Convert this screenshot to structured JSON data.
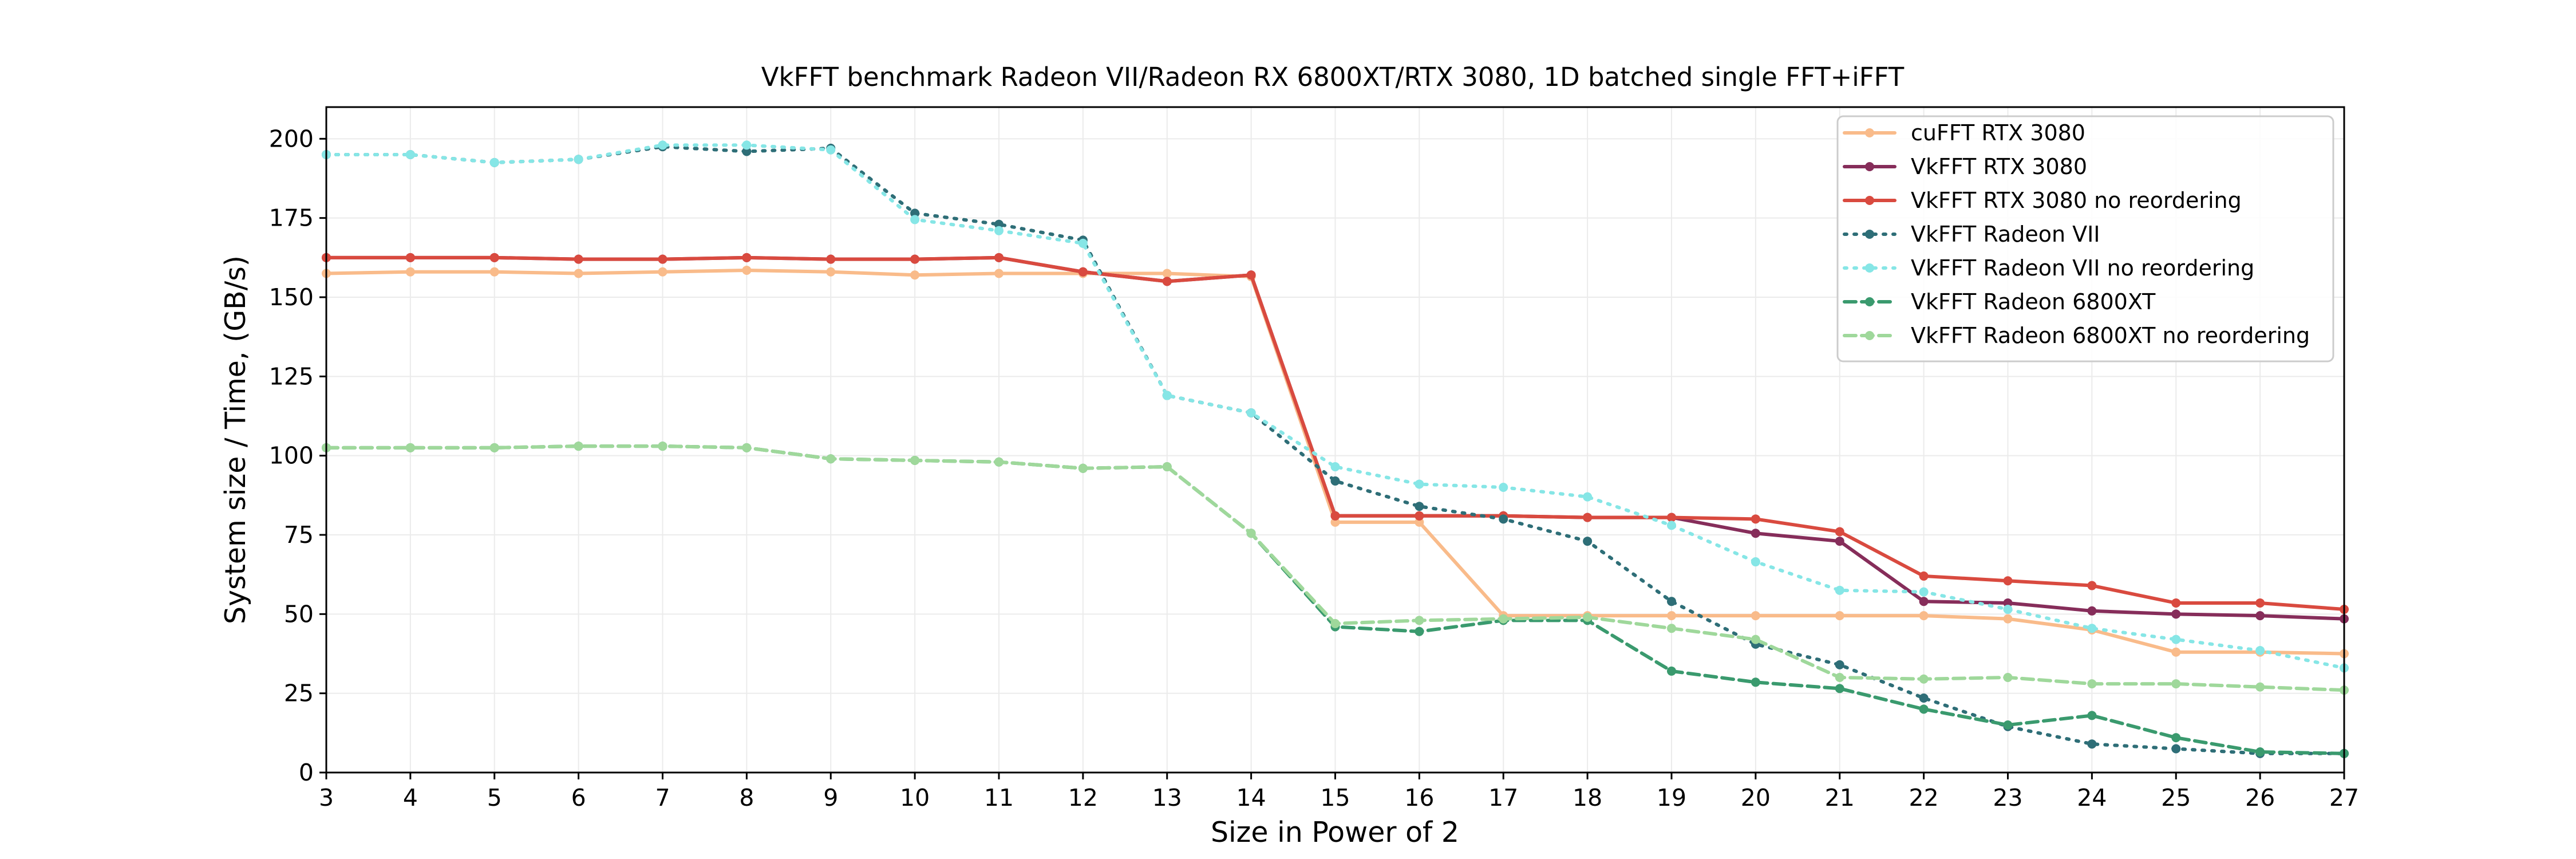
{
  "chart_data": {
    "type": "line",
    "title": "VkFFT benchmark Radeon VII/Radeon RX 6800XT/RTX 3080, 1D batched single FFT+iFFT",
    "xlabel": "Size in Power of 2",
    "ylabel": "System size / Time, (GB/s)",
    "xlim": [
      3,
      27
    ],
    "ylim": [
      0,
      210
    ],
    "xticks": [
      3,
      4,
      5,
      6,
      7,
      8,
      9,
      10,
      11,
      12,
      13,
      14,
      15,
      16,
      17,
      18,
      19,
      20,
      21,
      22,
      23,
      24,
      25,
      26,
      27
    ],
    "yticks": [
      0,
      25,
      50,
      75,
      100,
      125,
      150,
      175,
      200
    ],
    "grid": true,
    "legend_position": "top-right",
    "x": [
      3,
      4,
      5,
      6,
      7,
      8,
      9,
      10,
      11,
      12,
      13,
      14,
      15,
      16,
      17,
      18,
      19,
      20,
      21,
      22,
      23,
      24,
      25,
      26,
      27
    ],
    "series": [
      {
        "name": "cuFFT RTX 3080",
        "color": "#f9bb8a",
        "dash": "solid",
        "values": [
          157.5,
          158,
          158,
          157.5,
          158,
          158.5,
          158,
          157,
          157.5,
          157.5,
          157.5,
          156.5,
          79,
          79,
          49.5,
          49.5,
          49.5,
          49.5,
          49.5,
          49.5,
          48.5,
          45,
          38,
          38,
          37.5
        ]
      },
      {
        "name": "VkFFT RTX 3080",
        "color": "#862d5a",
        "dash": "solid",
        "values": [
          162.5,
          162.5,
          162.5,
          162,
          162,
          162.5,
          162,
          162,
          162.5,
          158,
          155,
          157,
          81,
          81,
          81,
          80.5,
          80.5,
          75.5,
          73,
          54,
          53.5,
          51,
          50,
          49.5,
          48.5
        ]
      },
      {
        "name": "VkFFT RTX 3080 no reordering",
        "color": "#d94a3f",
        "dash": "solid",
        "values": [
          162.5,
          162.5,
          162.5,
          162,
          162,
          162.5,
          162,
          162,
          162.5,
          158,
          155,
          157,
          81,
          81,
          81,
          80.5,
          80.5,
          80,
          76,
          62,
          60.5,
          59,
          53.5,
          53.5,
          51.5
        ]
      },
      {
        "name": "VkFFT Radeon VII",
        "color": "#2e6e77",
        "dash": "dotted",
        "values": [
          195,
          195,
          192.5,
          193.5,
          197.5,
          196,
          197,
          176.5,
          173,
          168,
          119,
          113.5,
          92,
          84,
          80,
          73,
          54,
          40.5,
          34,
          23.5,
          14.5,
          9,
          7.5,
          6,
          6
        ]
      },
      {
        "name": "VkFFT Radeon VII no reordering",
        "color": "#86e6e6",
        "dash": "dotted",
        "values": [
          195,
          195,
          192.5,
          193.5,
          198,
          198,
          196.5,
          174.5,
          171,
          167,
          119,
          113.5,
          96.5,
          91,
          90,
          87,
          78,
          66.5,
          57.5,
          57,
          51.5,
          45.5,
          42,
          38.5,
          33
        ]
      },
      {
        "name": "VkFFT Radeon 6800XT",
        "color": "#3a9a6e",
        "dash": "dashed",
        "values": [
          102.5,
          102.5,
          102.5,
          103,
          103,
          102.5,
          99,
          98.5,
          98,
          96,
          96.5,
          75.5,
          46,
          44.5,
          48,
          48,
          32,
          28.5,
          26.5,
          20,
          15,
          18,
          11,
          6.5,
          6
        ]
      },
      {
        "name": "VkFFT Radeon 6800XT no reordering",
        "color": "#9fd89b",
        "dash": "dashed",
        "values": [
          102.5,
          102.5,
          102.5,
          103,
          103,
          102.5,
          99,
          98.5,
          98,
          96,
          96.5,
          75.5,
          47,
          48,
          48.5,
          49,
          45.5,
          42,
          30,
          29.5,
          30,
          28,
          28,
          27,
          26
        ]
      }
    ]
  }
}
